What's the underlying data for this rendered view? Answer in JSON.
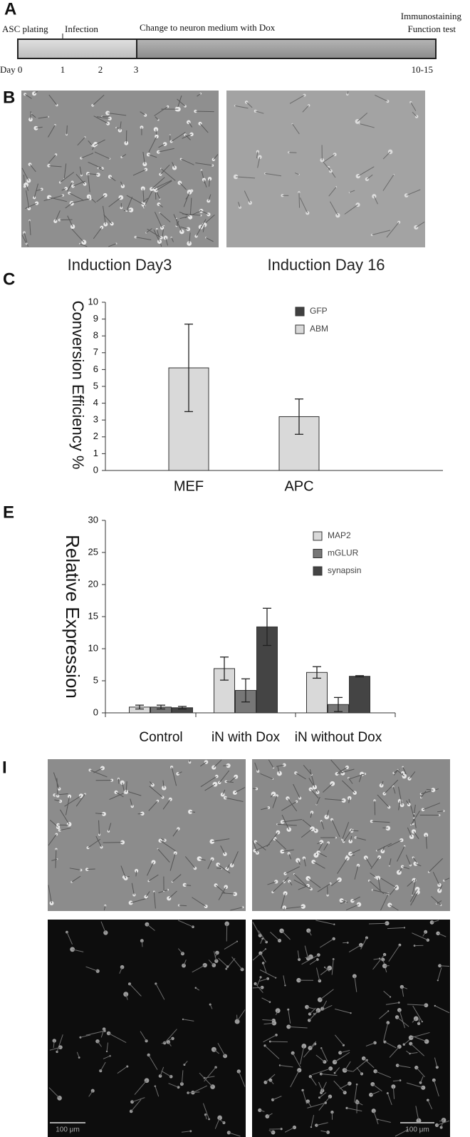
{
  "panel_labels": [
    "A",
    "B",
    "C",
    "E",
    "I"
  ],
  "timeline": {
    "stages": [
      "ASC plating",
      "Infection",
      "Change to neuron medium with Dox"
    ],
    "endpoints": [
      "Immunostaining",
      "Function test"
    ],
    "days": [
      "Day 0",
      "1",
      "2",
      "3",
      "10-15"
    ]
  },
  "images": {
    "captions": [
      "Induction Day3",
      "Induction Day 16"
    ],
    "scale_bars": [
      "100 μm",
      "100 μm"
    ]
  },
  "chart_data": [
    {
      "type": "bar",
      "y_label": "Conversion Efficiency %",
      "categories": [
        "MEF",
        "APC"
      ],
      "series": [
        {
          "name": "GFP",
          "color": "#404040",
          "values": [
            0,
            0
          ]
        },
        {
          "name": "ABM",
          "color": "#d9d9d9",
          "values": [
            6.1,
            3.2
          ],
          "errors": [
            2.6,
            1.05
          ]
        }
      ],
      "ylim": [
        0,
        10
      ],
      "yticks": [
        0,
        1,
        2,
        3,
        4,
        5,
        6,
        7,
        8,
        9,
        10
      ],
      "legend": "upper right"
    },
    {
      "type": "bar",
      "y_label": "Relative Expression",
      "categories": [
        "Control",
        "iN with Dox",
        "iN without Dox"
      ],
      "series": [
        {
          "name": "MAP2",
          "color": "#d9d9d9",
          "values": [
            0.9,
            6.9,
            6.3
          ],
          "errors": [
            0.3,
            1.8,
            0.9
          ]
        },
        {
          "name": "mGLUR",
          "color": "#777777",
          "values": [
            0.9,
            3.5,
            1.3
          ],
          "errors": [
            0.3,
            1.8,
            1.1
          ]
        },
        {
          "name": "synapsin",
          "color": "#444444",
          "values": [
            0.8,
            13.4,
            5.7
          ],
          "errors": [
            0.2,
            2.9,
            0.1
          ]
        }
      ],
      "ylim": [
        0,
        30
      ],
      "yticks": [
        0,
        5,
        10,
        15,
        20,
        25,
        30
      ],
      "legend": "upper right"
    }
  ]
}
